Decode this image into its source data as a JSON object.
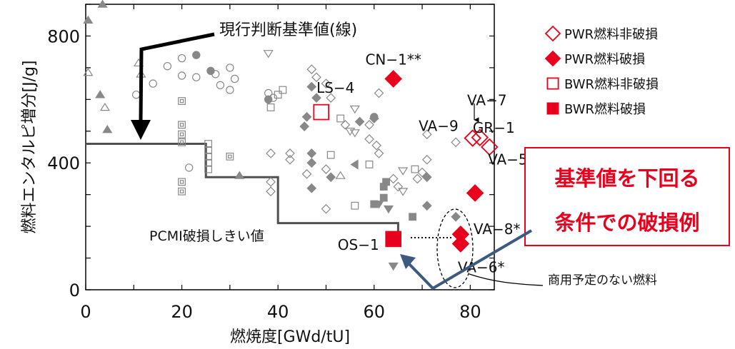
{
  "colors": {
    "axis": "#000000",
    "grid_marker": "#888888",
    "highlight_red": "#e8001c",
    "threshold_line": "#505050",
    "callout_arrow": "#3c5a80"
  },
  "chart_data": {
    "type": "scatter",
    "xlabel": "燃焼度[GWd/tU]",
    "ylabel": "燃料エンタルピ増分[J/g]",
    "xlim": [
      0,
      85
    ],
    "ylim": [
      0,
      900
    ],
    "xticks": [
      0,
      20,
      40,
      60,
      80
    ],
    "yticks": [
      0,
      400,
      800
    ],
    "legend": {
      "placement": "top-right",
      "items": [
        {
          "label": "PWR燃料非破損",
          "marker": "diamond-open"
        },
        {
          "label": "PWR燃料破損",
          "marker": "diamond-filled"
        },
        {
          "label": "BWR燃料非破損",
          "marker": "square-open"
        },
        {
          "label": "BWR燃料破損",
          "marker": "square-filled"
        }
      ]
    },
    "threshold_line": {
      "label": "PCMI破損しきい値",
      "points": [
        [
          0,
          460
        ],
        [
          25,
          460
        ],
        [
          25,
          355
        ],
        [
          40,
          355
        ],
        [
          40,
          210
        ],
        [
          65,
          210
        ],
        [
          65,
          160
        ]
      ]
    },
    "highlighted_points": [
      {
        "label": "CN−1**",
        "x": 64,
        "y": 665,
        "marker": "diamond-filled"
      },
      {
        "label": "LS−4",
        "x": 49,
        "y": 560,
        "marker": "square-open"
      },
      {
        "label": "VA−7",
        "x": 82,
        "y": 480,
        "marker": "diamond-open"
      },
      {
        "label": "VA−9",
        "x": 80.5,
        "y": 478,
        "marker": "diamond-open"
      },
      {
        "label": "GR−1",
        "x": 84,
        "y": 450,
        "marker": "diamond-open"
      },
      {
        "label": "VA−5",
        "x": 81,
        "y": 305,
        "marker": "diamond-filled"
      },
      {
        "label": "VA−8*",
        "x": 78,
        "y": 175,
        "marker": "diamond-filled"
      },
      {
        "label": "VA−6*",
        "x": 78,
        "y": 145,
        "marker": "diamond-filled"
      },
      {
        "label": "OS−1",
        "x": 64,
        "y": 160,
        "marker": "square-filled"
      }
    ],
    "background_points": [
      {
        "x": 0.5,
        "y": 850,
        "m": "tri-f"
      },
      {
        "x": 3.5,
        "y": 900,
        "m": "tri-f"
      },
      {
        "x": 0.5,
        "y": 685,
        "m": "tri-o"
      },
      {
        "x": 3,
        "y": 615,
        "m": "tri-f"
      },
      {
        "x": 4,
        "y": 575,
        "m": "tri-o"
      },
      {
        "x": 4.5,
        "y": 505,
        "m": "tri-f"
      },
      {
        "x": 11,
        "y": 715,
        "m": "tri-o"
      },
      {
        "x": 11.5,
        "y": 680,
        "m": "tri-o"
      },
      {
        "x": 10.5,
        "y": 615,
        "m": "circ-o"
      },
      {
        "x": 14,
        "y": 650,
        "m": "circ-o"
      },
      {
        "x": 17,
        "y": 705,
        "m": "circ-o"
      },
      {
        "x": 20,
        "y": 730,
        "m": "circ-o"
      },
      {
        "x": 23,
        "y": 740,
        "m": "circ-f"
      },
      {
        "x": 20,
        "y": 675,
        "m": "circ-o"
      },
      {
        "x": 23,
        "y": 670,
        "m": "circ-o"
      },
      {
        "x": 27,
        "y": 680,
        "m": "circ-o"
      },
      {
        "x": 30,
        "y": 700,
        "m": "circ-o"
      },
      {
        "x": 26,
        "y": 690,
        "m": "circ-f"
      },
      {
        "x": 28,
        "y": 645,
        "m": "circ-o"
      },
      {
        "x": 31,
        "y": 665,
        "m": "circ-o"
      },
      {
        "x": 30,
        "y": 630,
        "m": "circ-o"
      },
      {
        "x": 38,
        "y": 745,
        "m": "tri-dn-o"
      },
      {
        "x": 38,
        "y": 620,
        "m": "circ-o"
      },
      {
        "x": 39,
        "y": 605,
        "m": "circ-o"
      },
      {
        "x": 38,
        "y": 600,
        "m": "circ-f"
      },
      {
        "x": 40,
        "y": 615,
        "m": "sq-o"
      },
      {
        "x": 41,
        "y": 630,
        "m": "sq-o"
      },
      {
        "x": 38.5,
        "y": 575,
        "m": "sq-o"
      },
      {
        "x": 20,
        "y": 595,
        "m": "sq-do"
      },
      {
        "x": 20,
        "y": 520,
        "m": "sq-do"
      },
      {
        "x": 20,
        "y": 490,
        "m": "sq-do"
      },
      {
        "x": 20,
        "y": 465,
        "m": "sq-do"
      },
      {
        "x": 25.5,
        "y": 460,
        "m": "sq-o"
      },
      {
        "x": 25.5,
        "y": 440,
        "m": "sq-o"
      },
      {
        "x": 25.5,
        "y": 420,
        "m": "sq-o"
      },
      {
        "x": 25.5,
        "y": 400,
        "m": "sq-o"
      },
      {
        "x": 25.5,
        "y": 380,
        "m": "sq-o"
      },
      {
        "x": 21.5,
        "y": 385,
        "m": "circ-o"
      },
      {
        "x": 30,
        "y": 420,
        "m": "sq-do"
      },
      {
        "x": 32,
        "y": 360,
        "m": "tri-f"
      },
      {
        "x": 20,
        "y": 340,
        "m": "sq-do"
      },
      {
        "x": 20,
        "y": 310,
        "m": "sq-do"
      },
      {
        "x": 38.5,
        "y": 430,
        "m": "dia-o"
      },
      {
        "x": 38.5,
        "y": 340,
        "m": "dia-o"
      },
      {
        "x": 38.5,
        "y": 310,
        "m": "dia-o"
      },
      {
        "x": 42.5,
        "y": 430,
        "m": "dia-o"
      },
      {
        "x": 42.5,
        "y": 410,
        "m": "dia-o"
      },
      {
        "x": 47,
        "y": 430,
        "m": "dia-f"
      },
      {
        "x": 47,
        "y": 400,
        "m": "dia-f"
      },
      {
        "x": 46,
        "y": 365,
        "m": "dia-o"
      },
      {
        "x": 47,
        "y": 320,
        "m": "dia-f"
      },
      {
        "x": 47,
        "y": 695,
        "m": "dia-o"
      },
      {
        "x": 48,
        "y": 670,
        "m": "dia-o"
      },
      {
        "x": 47,
        "y": 640,
        "m": "dia-f"
      },
      {
        "x": 48,
        "y": 605,
        "m": "dia-f"
      },
      {
        "x": 46,
        "y": 545,
        "m": "dia-f"
      },
      {
        "x": 45.5,
        "y": 515,
        "m": "dia-f"
      },
      {
        "x": 50,
        "y": 650,
        "m": "dia-o"
      },
      {
        "x": 51,
        "y": 605,
        "m": "dia-o"
      },
      {
        "x": 53,
        "y": 540,
        "m": "sq-o"
      },
      {
        "x": 54,
        "y": 520,
        "m": "dia-o"
      },
      {
        "x": 56,
        "y": 570,
        "m": "tri-dn-o"
      },
      {
        "x": 56,
        "y": 495,
        "m": "tri-dn-o"
      },
      {
        "x": 57,
        "y": 530,
        "m": "dia-f"
      },
      {
        "x": 55,
        "y": 500,
        "m": "tri-dn-o"
      },
      {
        "x": 59,
        "y": 520,
        "m": "dia-o"
      },
      {
        "x": 60,
        "y": 545,
        "m": "circ-f"
      },
      {
        "x": 60,
        "y": 540,
        "m": "dia-f"
      },
      {
        "x": 61,
        "y": 620,
        "m": "dia-o"
      },
      {
        "x": 59,
        "y": 475,
        "m": "dia-o"
      },
      {
        "x": 60.5,
        "y": 455,
        "m": "dia-o"
      },
      {
        "x": 61,
        "y": 430,
        "m": "dia-o"
      },
      {
        "x": 51,
        "y": 425,
        "m": "sq-o"
      },
      {
        "x": 51,
        "y": 355,
        "m": "dia-f"
      },
      {
        "x": 50,
        "y": 380,
        "m": "dia-o"
      },
      {
        "x": 50,
        "y": 255,
        "m": "dia-o"
      },
      {
        "x": 53,
        "y": 360,
        "m": "tri-o"
      },
      {
        "x": 56,
        "y": 395,
        "m": "tri-lt-f"
      },
      {
        "x": 56,
        "y": 265,
        "m": "sq-o"
      },
      {
        "x": 59,
        "y": 395,
        "m": "sq-o"
      },
      {
        "x": 62,
        "y": 325,
        "m": "sq-f"
      },
      {
        "x": 62,
        "y": 290,
        "m": "sq-f"
      },
      {
        "x": 62.5,
        "y": 340,
        "m": "sq-f"
      },
      {
        "x": 61,
        "y": 270,
        "m": "tri-dn-f"
      },
      {
        "x": 63,
        "y": 255,
        "m": "tri-dn-f"
      },
      {
        "x": 60,
        "y": 270,
        "m": "sq-f"
      },
      {
        "x": 64,
        "y": 350,
        "m": "dia-o"
      },
      {
        "x": 66,
        "y": 375,
        "m": "tri-dn-o"
      },
      {
        "x": 66,
        "y": 310,
        "m": "tri-dn-o"
      },
      {
        "x": 65,
        "y": 325,
        "m": "dia-o"
      },
      {
        "x": 68.5,
        "y": 380,
        "m": "sq-o"
      },
      {
        "x": 70,
        "y": 370,
        "m": "dia-o"
      },
      {
        "x": 69,
        "y": 350,
        "m": "dia-o"
      },
      {
        "x": 71,
        "y": 410,
        "m": "dia-o"
      },
      {
        "x": 71,
        "y": 355,
        "m": "dia-f"
      },
      {
        "x": 71,
        "y": 490,
        "m": "dia-o"
      },
      {
        "x": 68,
        "y": 230,
        "m": "sq-f"
      },
      {
        "x": 71,
        "y": 265,
        "m": "dia-f"
      },
      {
        "x": 64,
        "y": 75,
        "m": "tri-dn-f"
      },
      {
        "x": 77,
        "y": 465,
        "m": "dia-o"
      },
      {
        "x": 77,
        "y": 230,
        "m": "dia-f"
      }
    ]
  },
  "annotations": {
    "current_criterion": "現行判断基準値(線)",
    "below_criterion_line1": "基準値を下回る",
    "below_criterion_line2": "条件での破損例",
    "non_commercial_fuel": "商用予定のない燃料"
  }
}
